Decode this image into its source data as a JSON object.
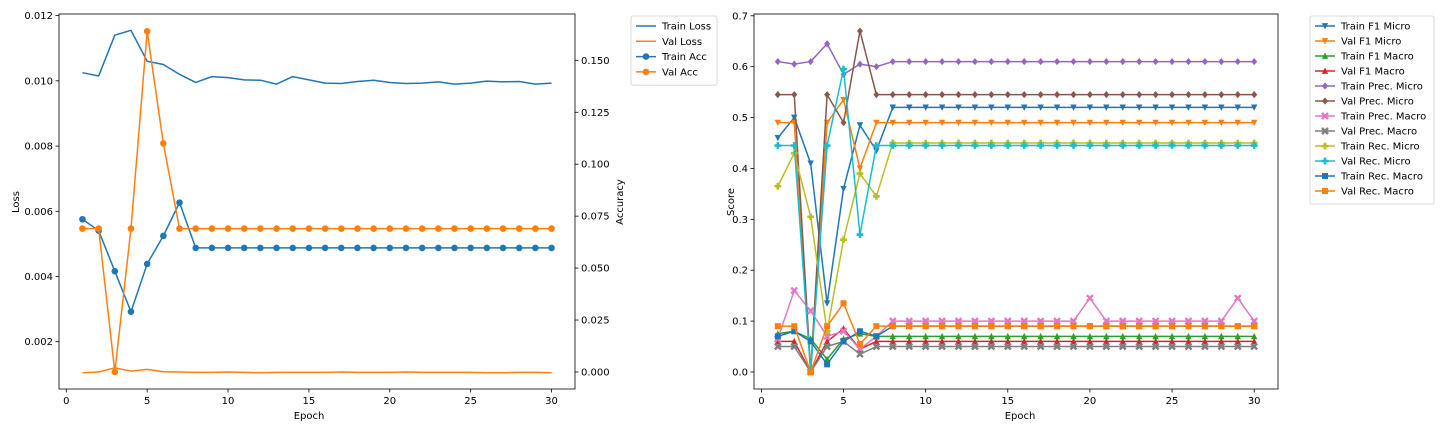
{
  "chart_data": [
    {
      "type": "line",
      "xlabel": "Epoch",
      "ylabel": "Loss",
      "y2label": "Accuracy",
      "x": [
        1,
        2,
        3,
        4,
        5,
        6,
        7,
        8,
        9,
        10,
        11,
        12,
        13,
        14,
        15,
        16,
        17,
        18,
        19,
        20,
        21,
        22,
        23,
        24,
        25,
        26,
        27,
        28,
        29,
        30
      ],
      "xticks": [
        0,
        5,
        10,
        15,
        20,
        25,
        30
      ],
      "xlim": [
        -0.45,
        31.45
      ],
      "ylim": [
        0.00055,
        0.01205
      ],
      "yticks": [
        0.002,
        0.004,
        0.006,
        0.008,
        0.01,
        0.012
      ],
      "yticklabels": [
        "0.002",
        "0.004",
        "0.006",
        "0.008",
        "0.010",
        "0.012"
      ],
      "y2lim": [
        -0.0082,
        0.1723
      ],
      "y2ticks": [
        0.0,
        0.025,
        0.05,
        0.075,
        0.1,
        0.125,
        0.15
      ],
      "y2ticklabels": [
        "0.000",
        "0.025",
        "0.050",
        "0.075",
        "0.100",
        "0.125",
        "0.150"
      ],
      "legend_location": "outside upper right",
      "series": [
        {
          "name": "Train Loss",
          "axis": "left",
          "color": "#1f77b4",
          "marker": "none",
          "values": [
            0.01025,
            0.01015,
            0.0114,
            0.01155,
            0.0106,
            0.0105,
            0.0102,
            0.00995,
            0.01013,
            0.0101,
            0.01003,
            0.01002,
            0.0099,
            0.01013,
            0.01003,
            0.00993,
            0.00992,
            0.00998,
            0.01002,
            0.00995,
            0.00992,
            0.00993,
            0.00997,
            0.0099,
            0.00993,
            0.00999,
            0.00997,
            0.00998,
            0.0099,
            0.00993
          ]
        },
        {
          "name": "Val Loss",
          "axis": "left",
          "color": "#ff7f0e",
          "marker": "none",
          "values": [
            0.00105,
            0.00107,
            0.0012,
            0.0011,
            0.00115,
            0.00108,
            0.00107,
            0.00106,
            0.00106,
            0.00107,
            0.00106,
            0.00105,
            0.00106,
            0.00106,
            0.00106,
            0.00106,
            0.00107,
            0.00106,
            0.00106,
            0.00106,
            0.00107,
            0.00106,
            0.00106,
            0.00106,
            0.00106,
            0.00105,
            0.00105,
            0.00106,
            0.00106,
            0.00105
          ]
        },
        {
          "name": "Train Acc",
          "axis": "right",
          "color": "#1f77b4",
          "marker": "o",
          "values": [
            0.0735,
            0.068,
            0.0485,
            0.029,
            0.052,
            0.0655,
            0.0815,
            0.0597,
            0.0597,
            0.0597,
            0.0597,
            0.0597,
            0.0597,
            0.0597,
            0.0597,
            0.0597,
            0.0597,
            0.0597,
            0.0597,
            0.0597,
            0.0597,
            0.0597,
            0.0597,
            0.0597,
            0.0597,
            0.0597,
            0.0597,
            0.0597,
            0.0597,
            0.0597
          ]
        },
        {
          "name": "Val Acc",
          "axis": "right",
          "color": "#ff7f0e",
          "marker": "o",
          "values": [
            0.069,
            0.069,
            0.0,
            0.069,
            0.164,
            0.11,
            0.069,
            0.069,
            0.069,
            0.069,
            0.069,
            0.069,
            0.069,
            0.069,
            0.069,
            0.069,
            0.069,
            0.069,
            0.069,
            0.069,
            0.069,
            0.069,
            0.069,
            0.069,
            0.069,
            0.069,
            0.069,
            0.069,
            0.069,
            0.069
          ]
        }
      ]
    },
    {
      "type": "line",
      "xlabel": "Epoch",
      "ylabel": "Score",
      "x": [
        1,
        2,
        3,
        4,
        5,
        6,
        7,
        8,
        9,
        10,
        11,
        12,
        13,
        14,
        15,
        16,
        17,
        18,
        19,
        20,
        21,
        22,
        23,
        24,
        25,
        26,
        27,
        28,
        29,
        30
      ],
      "xticks": [
        0,
        5,
        10,
        15,
        20,
        25,
        30
      ],
      "xlim": [
        -0.45,
        31.45
      ],
      "ylim": [
        -0.0335,
        0.7035
      ],
      "yticks": [
        0.0,
        0.1,
        0.2,
        0.3,
        0.4,
        0.5,
        0.6,
        0.7
      ],
      "yticklabels": [
        "0.0",
        "0.1",
        "0.2",
        "0.3",
        "0.4",
        "0.5",
        "0.6",
        "0.7"
      ],
      "legend_location": "outside upper right",
      "series": [
        {
          "name": "Train F1 Micro",
          "color": "#1f77b4",
          "marker": "v",
          "values": [
            0.46,
            0.5,
            0.41,
            0.135,
            0.36,
            0.485,
            0.435,
            0.52,
            0.52,
            0.52,
            0.52,
            0.52,
            0.52,
            0.52,
            0.52,
            0.52,
            0.52,
            0.52,
            0.52,
            0.52,
            0.52,
            0.52,
            0.52,
            0.52,
            0.52,
            0.52,
            0.52,
            0.52,
            0.52,
            0.52
          ]
        },
        {
          "name": "Val F1 Micro",
          "color": "#ff7f0e",
          "marker": "v",
          "values": [
            0.49,
            0.49,
            0.0,
            0.49,
            0.535,
            0.4,
            0.49,
            0.49,
            0.49,
            0.49,
            0.49,
            0.49,
            0.49,
            0.49,
            0.49,
            0.49,
            0.49,
            0.49,
            0.49,
            0.49,
            0.49,
            0.49,
            0.49,
            0.49,
            0.49,
            0.49,
            0.49,
            0.49,
            0.49,
            0.49
          ]
        },
        {
          "name": "Train F1 Macro",
          "color": "#2ca02c",
          "marker": "^",
          "values": [
            0.075,
            0.08,
            0.065,
            0.025,
            0.065,
            0.075,
            0.07,
            0.07,
            0.07,
            0.07,
            0.07,
            0.07,
            0.07,
            0.07,
            0.07,
            0.07,
            0.07,
            0.07,
            0.07,
            0.07,
            0.07,
            0.07,
            0.07,
            0.07,
            0.07,
            0.07,
            0.07,
            0.07,
            0.07,
            0.07
          ]
        },
        {
          "name": "Val F1 Macro",
          "color": "#d62728",
          "marker": "^",
          "values": [
            0.06,
            0.06,
            0.0,
            0.06,
            0.085,
            0.045,
            0.06,
            0.06,
            0.06,
            0.06,
            0.06,
            0.06,
            0.06,
            0.06,
            0.06,
            0.06,
            0.06,
            0.06,
            0.06,
            0.06,
            0.06,
            0.06,
            0.06,
            0.06,
            0.06,
            0.06,
            0.06,
            0.06,
            0.06,
            0.06
          ]
        },
        {
          "name": "Train Prec. Micro",
          "color": "#9467bd",
          "marker": "D",
          "values": [
            0.61,
            0.605,
            0.61,
            0.645,
            0.585,
            0.605,
            0.6,
            0.61,
            0.61,
            0.61,
            0.61,
            0.61,
            0.61,
            0.61,
            0.61,
            0.61,
            0.61,
            0.61,
            0.61,
            0.61,
            0.61,
            0.61,
            0.61,
            0.61,
            0.61,
            0.61,
            0.61,
            0.61,
            0.61,
            0.61
          ]
        },
        {
          "name": "Val Prec. Micro",
          "color": "#8c564b",
          "marker": "D",
          "values": [
            0.545,
            0.545,
            0.0,
            0.545,
            0.49,
            0.67,
            0.545,
            0.545,
            0.545,
            0.545,
            0.545,
            0.545,
            0.545,
            0.545,
            0.545,
            0.545,
            0.545,
            0.545,
            0.545,
            0.545,
            0.545,
            0.545,
            0.545,
            0.545,
            0.545,
            0.545,
            0.545,
            0.545,
            0.545,
            0.545
          ]
        },
        {
          "name": "Train Prec. Macro",
          "color": "#e377c2",
          "marker": "X",
          "values": [
            0.065,
            0.16,
            0.12,
            0.07,
            0.08,
            0.045,
            0.07,
            0.1,
            0.1,
            0.1,
            0.1,
            0.1,
            0.1,
            0.1,
            0.1,
            0.1,
            0.1,
            0.1,
            0.1,
            0.145,
            0.1,
            0.1,
            0.1,
            0.1,
            0.1,
            0.1,
            0.1,
            0.1,
            0.145,
            0.1
          ]
        },
        {
          "name": "Val Prec. Macro",
          "color": "#7f7f7f",
          "marker": "X",
          "values": [
            0.05,
            0.05,
            0.0,
            0.05,
            0.06,
            0.035,
            0.05,
            0.05,
            0.05,
            0.05,
            0.05,
            0.05,
            0.05,
            0.05,
            0.05,
            0.05,
            0.05,
            0.05,
            0.05,
            0.05,
            0.05,
            0.05,
            0.05,
            0.05,
            0.05,
            0.05,
            0.05,
            0.05,
            0.05,
            0.05
          ]
        },
        {
          "name": "Train Rec. Micro",
          "color": "#bcbd22",
          "marker": "P",
          "values": [
            0.365,
            0.43,
            0.305,
            0.08,
            0.26,
            0.39,
            0.345,
            0.45,
            0.45,
            0.45,
            0.45,
            0.45,
            0.45,
            0.45,
            0.45,
            0.45,
            0.45,
            0.45,
            0.45,
            0.45,
            0.45,
            0.45,
            0.45,
            0.45,
            0.45,
            0.45,
            0.45,
            0.45,
            0.45,
            0.45
          ]
        },
        {
          "name": "Val Rec. Micro",
          "color": "#17becf",
          "marker": "P",
          "values": [
            0.445,
            0.445,
            0.0,
            0.445,
            0.595,
            0.27,
            0.445,
            0.445,
            0.445,
            0.445,
            0.445,
            0.445,
            0.445,
            0.445,
            0.445,
            0.445,
            0.445,
            0.445,
            0.445,
            0.445,
            0.445,
            0.445,
            0.445,
            0.445,
            0.445,
            0.445,
            0.445,
            0.445,
            0.445,
            0.445
          ]
        },
        {
          "name": "Train Rec. Macro",
          "color": "#1f77b4",
          "marker": "s",
          "values": [
            0.07,
            0.08,
            0.06,
            0.015,
            0.06,
            0.08,
            0.07,
            0.09,
            0.09,
            0.09,
            0.09,
            0.09,
            0.09,
            0.09,
            0.09,
            0.09,
            0.09,
            0.09,
            0.09,
            0.09,
            0.09,
            0.09,
            0.09,
            0.09,
            0.09,
            0.09,
            0.09,
            0.09,
            0.09,
            0.09
          ]
        },
        {
          "name": "Val Rec. Macro",
          "color": "#ff7f0e",
          "marker": "s",
          "values": [
            0.09,
            0.09,
            0.0,
            0.09,
            0.135,
            0.055,
            0.09,
            0.09,
            0.09,
            0.09,
            0.09,
            0.09,
            0.09,
            0.09,
            0.09,
            0.09,
            0.09,
            0.09,
            0.09,
            0.09,
            0.09,
            0.09,
            0.09,
            0.09,
            0.09,
            0.09,
            0.09,
            0.09,
            0.09,
            0.09
          ]
        }
      ]
    }
  ]
}
